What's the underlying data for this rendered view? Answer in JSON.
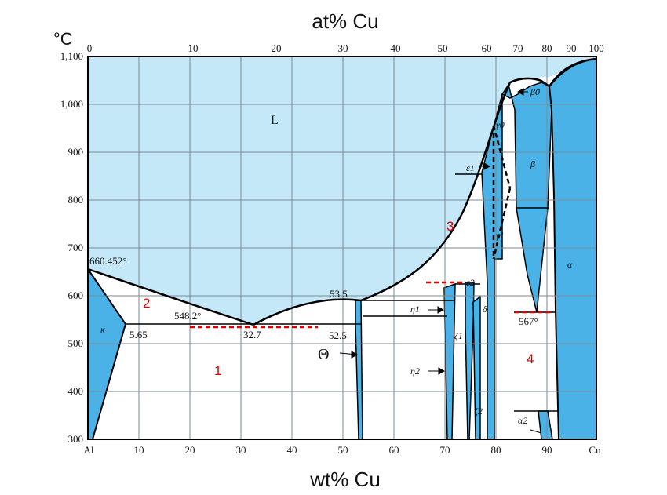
{
  "axes": {
    "top_title": "at% Cu",
    "bottom_title": "wt% Cu",
    "temp_unit": "°C",
    "y_ticks": [
      "300",
      "400",
      "500",
      "600",
      "700",
      "800",
      "900",
      "1,000",
      "1,100"
    ],
    "x_ticks": [
      "Al",
      "10",
      "20",
      "30",
      "40",
      "50",
      "60",
      "70",
      "80",
      "90",
      "Cu"
    ],
    "top_ticks": [
      "0",
      "10",
      "20",
      "30",
      "40",
      "50",
      "60",
      "70",
      "80",
      "90",
      "100"
    ]
  },
  "labels": {
    "liquid": "L",
    "al_melt": "660.452°",
    "eutectic_temp": "548.2°",
    "eutectic_comp": "32.7",
    "solubility": "5.65",
    "comp_535": "53.5",
    "comp_525": "52.5",
    "theta": "Θ",
    "eutectoid": "567°",
    "kappa": "κ",
    "alpha": "α",
    "alpha2": "α2",
    "beta": "β",
    "beta0": "β0",
    "gamma0": "γ0",
    "gamma1": "γ1",
    "epsilon1": "ε1",
    "epsilon2": "ε2",
    "eta1": "η1",
    "eta2": "η2",
    "zeta1": "ζ1",
    "zeta2": "ζ2",
    "delta": "δ"
  },
  "regions": [
    "1",
    "2",
    "3",
    "4"
  ],
  "colors": {
    "liquid": "#c4e8f7",
    "solid_phase": "#4ab2e6",
    "two_phase": "#ffffff",
    "grid": "#7a8a94",
    "boundary": "#000000",
    "marker": "#e00000"
  }
}
